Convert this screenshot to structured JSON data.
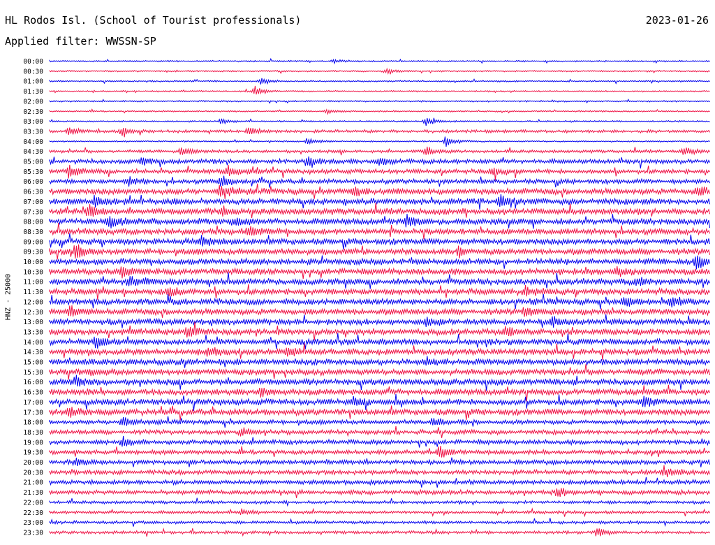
{
  "header": {
    "station": "HL Rodos Isl. (School of Tourist professionals)",
    "date": "2023-01-26",
    "filter": "Applied filter: WWSSN-SP"
  },
  "chart_data": {
    "type": "line",
    "title": "HL Rodos Isl. (School of Tourist professionals)",
    "ylabel": "HNZ - 25000",
    "row_labels": [
      "00:00",
      "00:30",
      "01:00",
      "01:30",
      "02:00",
      "02:30",
      "03:00",
      "03:30",
      "04:00",
      "04:30",
      "05:00",
      "05:30",
      "06:00",
      "06:30",
      "07:00",
      "07:30",
      "08:00",
      "08:30",
      "09:00",
      "09:30",
      "10:00",
      "10:30",
      "11:00",
      "11:30",
      "12:00",
      "12:30",
      "13:00",
      "13:30",
      "14:00",
      "14:30",
      "15:00",
      "15:30",
      "16:00",
      "16:30",
      "17:00",
      "17:30",
      "18:00",
      "18:30",
      "19:00",
      "19:30",
      "20:00",
      "20:30",
      "21:00",
      "21:30",
      "22:00",
      "22:30",
      "23:00",
      "23:30"
    ],
    "colors": [
      "#0000ee",
      "#ee1144"
    ],
    "noise_level": [
      1,
      1,
      1,
      1,
      1,
      1,
      1,
      2,
      1,
      2,
      3,
      3,
      3,
      4,
      4,
      4,
      4,
      4,
      4,
      4,
      4,
      4,
      4,
      4,
      4,
      4,
      4,
      4,
      4,
      4,
      4,
      4,
      4,
      4,
      4,
      4,
      3,
      3,
      3,
      3,
      3,
      3,
      3,
      3,
      2,
      2,
      2,
      2
    ],
    "events": [
      {
        "row": 0,
        "x": 0.43,
        "amp": 3
      },
      {
        "row": 1,
        "x": 0.51,
        "amp": 3
      },
      {
        "row": 2,
        "x": 0.32,
        "amp": 4
      },
      {
        "row": 3,
        "x": 0.31,
        "amp": 8
      },
      {
        "row": 5,
        "x": 0.42,
        "amp": 3
      },
      {
        "row": 6,
        "x": 0.26,
        "amp": 5
      },
      {
        "row": 6,
        "x": 0.57,
        "amp": 7
      },
      {
        "row": 7,
        "x": 0.03,
        "amp": 5
      },
      {
        "row": 7,
        "x": 0.11,
        "amp": 5
      },
      {
        "row": 7,
        "x": 0.3,
        "amp": 6
      },
      {
        "row": 8,
        "x": 0.6,
        "amp": 9
      },
      {
        "row": 8,
        "x": 0.39,
        "amp": 5
      },
      {
        "row": 9,
        "x": 0.2,
        "amp": 8
      },
      {
        "row": 9,
        "x": 0.57,
        "amp": 7
      },
      {
        "row": 9,
        "x": 0.96,
        "amp": 6
      },
      {
        "row": 10,
        "x": 0.39,
        "amp": 8
      },
      {
        "row": 10,
        "x": 0.5,
        "amp": 6
      },
      {
        "row": 10,
        "x": 0.14,
        "amp": 6
      },
      {
        "row": 11,
        "x": 0.03,
        "amp": 10
      },
      {
        "row": 11,
        "x": 0.27,
        "amp": 9
      },
      {
        "row": 11,
        "x": 0.67,
        "amp": 6
      },
      {
        "row": 12,
        "x": 0.26,
        "amp": 9
      },
      {
        "row": 12,
        "x": 0.12,
        "amp": 5
      },
      {
        "row": 13,
        "x": 0.26,
        "amp": 10
      },
      {
        "row": 13,
        "x": 0.46,
        "amp": 7
      },
      {
        "row": 13,
        "x": 0.98,
        "amp": 7
      },
      {
        "row": 14,
        "x": 0.07,
        "amp": 9
      },
      {
        "row": 14,
        "x": 0.68,
        "amp": 9
      },
      {
        "row": 15,
        "x": 0.06,
        "amp": 10
      },
      {
        "row": 15,
        "x": 0.26,
        "amp": 7
      },
      {
        "row": 16,
        "x": 0.09,
        "amp": 10
      },
      {
        "row": 16,
        "x": 0.54,
        "amp": 8
      },
      {
        "row": 16,
        "x": 0.28,
        "amp": 6
      },
      {
        "row": 17,
        "x": 0.3,
        "amp": 7
      },
      {
        "row": 18,
        "x": 0.23,
        "amp": 6
      },
      {
        "row": 19,
        "x": 0.04,
        "amp": 9
      },
      {
        "row": 19,
        "x": 0.62,
        "amp": 6
      },
      {
        "row": 20,
        "x": 0.98,
        "amp": 9
      },
      {
        "row": 21,
        "x": 0.11,
        "amp": 7
      },
      {
        "row": 21,
        "x": 0.86,
        "amp": 7
      },
      {
        "row": 22,
        "x": 0.12,
        "amp": 9
      },
      {
        "row": 22,
        "x": 0.89,
        "amp": 6
      },
      {
        "row": 23,
        "x": 0.18,
        "amp": 8
      },
      {
        "row": 23,
        "x": 0.72,
        "amp": 7
      },
      {
        "row": 24,
        "x": 0.87,
        "amp": 9
      },
      {
        "row": 24,
        "x": 0.94,
        "amp": 7
      },
      {
        "row": 25,
        "x": 0.03,
        "amp": 9
      },
      {
        "row": 25,
        "x": 0.72,
        "amp": 7
      },
      {
        "row": 26,
        "x": 0.57,
        "amp": 6
      },
      {
        "row": 26,
        "x": 0.76,
        "amp": 7
      },
      {
        "row": 27,
        "x": 0.21,
        "amp": 9
      },
      {
        "row": 27,
        "x": 0.69,
        "amp": 7
      },
      {
        "row": 28,
        "x": 0.07,
        "amp": 8
      },
      {
        "row": 29,
        "x": 0.24,
        "amp": 6
      },
      {
        "row": 29,
        "x": 0.36,
        "amp": 7
      },
      {
        "row": 30,
        "x": 0.57,
        "amp": 5
      },
      {
        "row": 31,
        "x": 0.06,
        "amp": 6
      },
      {
        "row": 32,
        "x": 0.04,
        "amp": 7
      },
      {
        "row": 33,
        "x": 0.32,
        "amp": 6
      },
      {
        "row": 34,
        "x": 0.46,
        "amp": 6
      },
      {
        "row": 34,
        "x": 0.9,
        "amp": 7
      },
      {
        "row": 35,
        "x": 0.03,
        "amp": 9
      },
      {
        "row": 36,
        "x": 0.58,
        "amp": 6
      },
      {
        "row": 36,
        "x": 0.11,
        "amp": 6
      },
      {
        "row": 37,
        "x": 0.29,
        "amp": 5
      },
      {
        "row": 38,
        "x": 0.11,
        "amp": 7
      },
      {
        "row": 39,
        "x": 0.59,
        "amp": 9
      },
      {
        "row": 40,
        "x": 0.04,
        "amp": 5
      },
      {
        "row": 41,
        "x": 0.93,
        "amp": 7
      },
      {
        "row": 43,
        "x": 0.77,
        "amp": 7
      },
      {
        "row": 45,
        "x": 0.29,
        "amp": 4
      },
      {
        "row": 47,
        "x": 0.83,
        "amp": 6
      }
    ]
  }
}
